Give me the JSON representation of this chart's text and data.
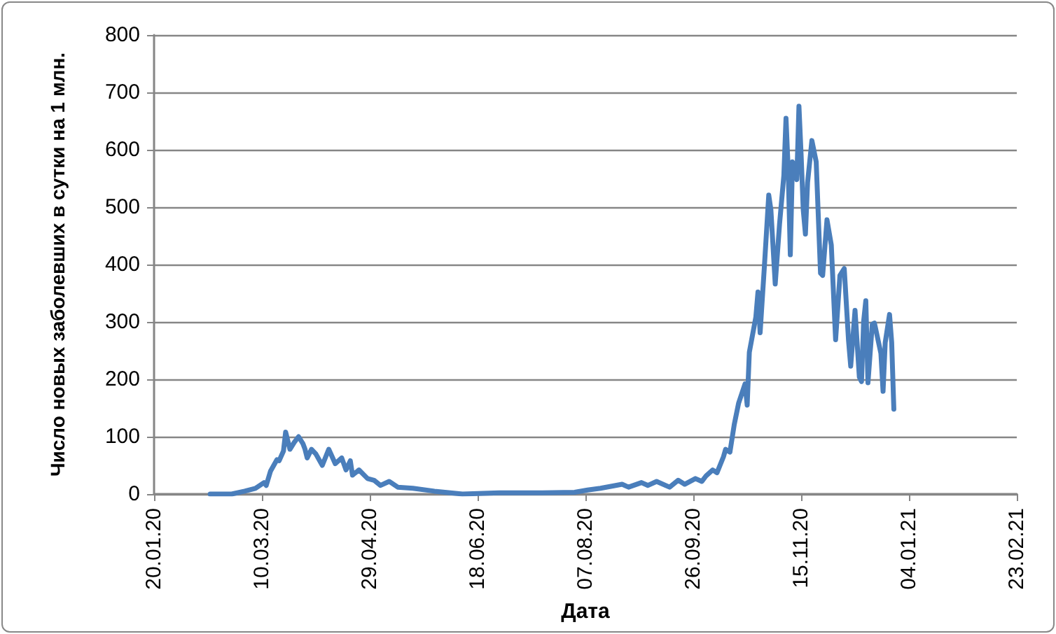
{
  "chart_data": {
    "type": "line",
    "xlabel": "Дата",
    "ylabel": "Число новых заболевших в сутки на 1 млн.",
    "grid": "y",
    "marker": "none",
    "line_style": "solid",
    "xlim": [
      "2020-01-20",
      "2021-02-23"
    ],
    "xticks": [
      {
        "value": "2020-01-20",
        "label": "20.01.20"
      },
      {
        "value": "2020-03-10",
        "label": "10.03.20"
      },
      {
        "value": "2020-04-29",
        "label": "29.04.20"
      },
      {
        "value": "2020-06-18",
        "label": "18.06.20"
      },
      {
        "value": "2020-08-07",
        "label": "07.08.20"
      },
      {
        "value": "2020-09-26",
        "label": "26.09.20"
      },
      {
        "value": "2020-11-15",
        "label": "15.11.20"
      },
      {
        "value": "2021-01-04",
        "label": "04.01.21"
      },
      {
        "value": "2021-02-23",
        "label": "23.02.21"
      }
    ],
    "ylim": [
      0,
      800
    ],
    "yticks": [
      0,
      100,
      200,
      300,
      400,
      500,
      600,
      700,
      800
    ],
    "series": [
      {
        "color": "#4a7ebb",
        "x": [
          "2020-02-15",
          "2020-02-25",
          "2020-03-02",
          "2020-03-07",
          "2020-03-11",
          "2020-03-12",
          "2020-03-14",
          "2020-03-17",
          "2020-03-18",
          "2020-03-20",
          "2020-03-21",
          "2020-03-23",
          "2020-03-25",
          "2020-03-27",
          "2020-03-29",
          "2020-03-30",
          "2020-03-31",
          "2020-04-02",
          "2020-04-04",
          "2020-04-07",
          "2020-04-10",
          "2020-04-13",
          "2020-04-16",
          "2020-04-18",
          "2020-04-20",
          "2020-04-21",
          "2020-04-24",
          "2020-04-28",
          "2020-05-01",
          "2020-05-04",
          "2020-05-08",
          "2020-05-12",
          "2020-05-19",
          "2020-05-29",
          "2020-06-11",
          "2020-06-28",
          "2020-07-18",
          "2020-08-02",
          "2020-08-08",
          "2020-08-14",
          "2020-08-21",
          "2020-08-24",
          "2020-08-27",
          "2020-09-02",
          "2020-09-05",
          "2020-09-09",
          "2020-09-15",
          "2020-09-19",
          "2020-09-22",
          "2020-09-27",
          "2020-09-30",
          "2020-10-02",
          "2020-10-05",
          "2020-10-07",
          "2020-10-10",
          "2020-10-11",
          "2020-10-13",
          "2020-10-15",
          "2020-10-17",
          "2020-10-20",
          "2020-10-21",
          "2020-10-22",
          "2020-10-25",
          "2020-10-26",
          "2020-10-27",
          "2020-10-29",
          "2020-10-31",
          "2020-11-01",
          "2020-11-03",
          "2020-11-05",
          "2020-11-07",
          "2020-11-08",
          "2020-11-09",
          "2020-11-10",
          "2020-11-11",
          "2020-11-13",
          "2020-11-14",
          "2020-11-15",
          "2020-11-16",
          "2020-11-17",
          "2020-11-18",
          "2020-11-20",
          "2020-11-22",
          "2020-11-24",
          "2020-11-25",
          "2020-11-27",
          "2020-11-29",
          "2020-12-01",
          "2020-12-03",
          "2020-12-05",
          "2020-12-07",
          "2020-12-08",
          "2020-12-10",
          "2020-12-12",
          "2020-12-13",
          "2020-12-14",
          "2020-12-15",
          "2020-12-16",
          "2020-12-18",
          "2020-12-19",
          "2020-12-22",
          "2020-12-23",
          "2020-12-24",
          "2020-12-26",
          "2020-12-27",
          "2020-12-28"
        ],
        "values": [
          0,
          0,
          5,
          10,
          20,
          15,
          40,
          60,
          58,
          75,
          108,
          78,
          90,
          100,
          88,
          78,
          63,
          78,
          70,
          50,
          78,
          53,
          63,
          42,
          58,
          33,
          42,
          27,
          24,
          15,
          22,
          12,
          10,
          5,
          0,
          2,
          2,
          3,
          7,
          10,
          15,
          17,
          12,
          20,
          15,
          22,
          12,
          24,
          17,
          27,
          22,
          32,
          42,
          37,
          65,
          78,
          73,
          121,
          158,
          192,
          155,
          247,
          308,
          352,
          281,
          398,
          521,
          495,
          366,
          470,
          555,
          655,
          567,
          417,
          579,
          548,
          676,
          592,
          495,
          453,
          543,
          616,
          579,
          385,
          381,
          478,
          434,
          269,
          381,
          393,
          267,
          223,
          320,
          204,
          196,
          301,
          337,
          194,
          296,
          298,
          245,
          179,
          264,
          313,
          264,
          148
        ]
      }
    ]
  }
}
